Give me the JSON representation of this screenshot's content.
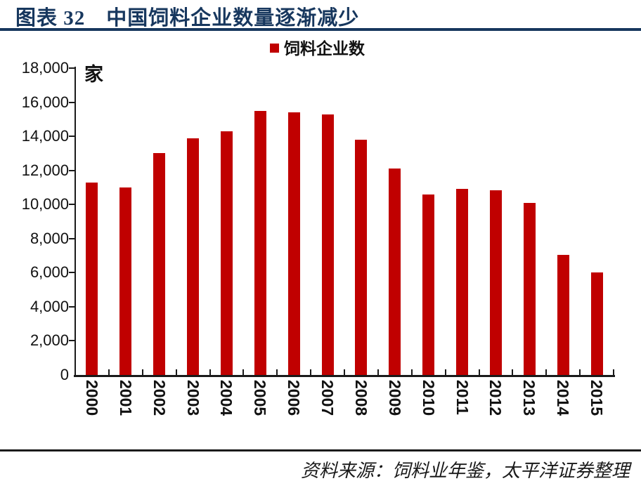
{
  "header": {
    "title": "图表 32　中国饲料企业数量逐渐减少"
  },
  "footer": {
    "source": "资料来源：饲料业年鉴，太平洋证券整理"
  },
  "colors": {
    "bar": "#C00000",
    "title": "#17375E",
    "divider": "#17375E",
    "axis": "#1A1A1A"
  },
  "chart_data": {
    "type": "bar",
    "title": "中国饲料企业数量逐渐减少",
    "legend": [
      {
        "label": "饲料企业数",
        "color": "#C00000"
      }
    ],
    "legend_position": "top-center",
    "unit_label": "家",
    "categories": [
      "2000",
      "2001",
      "2002",
      "2003",
      "2004",
      "2005",
      "2006",
      "2007",
      "2008",
      "2009",
      "2010",
      "2011",
      "2012",
      "2013",
      "2014",
      "2015"
    ],
    "values": [
      11300,
      11000,
      13000,
      13900,
      14300,
      15500,
      15400,
      15300,
      13800,
      12100,
      10600,
      10900,
      10850,
      10100,
      7050,
      6000
    ],
    "xlabel": "",
    "ylabel": "",
    "ylim": [
      0,
      18000
    ],
    "ytick_step": 2000,
    "ytick_labels": [
      "0",
      "2,000",
      "4,000",
      "6,000",
      "8,000",
      "10,000",
      "12,000",
      "14,000",
      "16,000",
      "18,000"
    ],
    "grid": false,
    "x_label_rotation_deg": 90
  }
}
